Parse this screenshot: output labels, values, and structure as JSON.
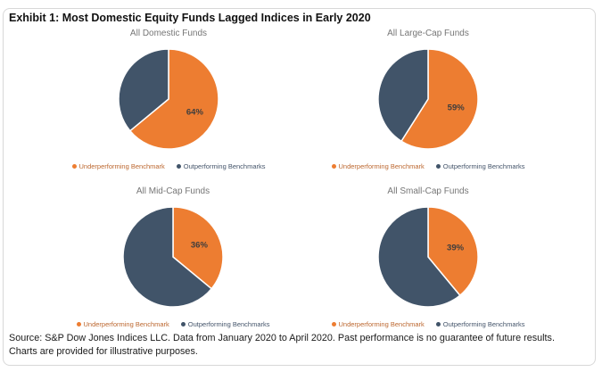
{
  "header": {
    "title": "Exhibit 1: Most Domestic Equity Funds Lagged Indices in Early 2020"
  },
  "chart_data": [
    {
      "type": "pie",
      "title": "All Domestic Funds",
      "slices": [
        {
          "label": "Underperforming Benchmark",
          "value": 64,
          "display": "64%",
          "color": "#ED7D31",
          "show_label": true
        },
        {
          "label": "Outperforming Benchmarks",
          "value": 36,
          "display": "36%",
          "color": "#415469",
          "show_label": false
        }
      ],
      "legend_position": "bottom"
    },
    {
      "type": "pie",
      "title": "All Large-Cap Funds",
      "slices": [
        {
          "label": "Underperforming Benchmark",
          "value": 59,
          "display": "59%",
          "color": "#ED7D31",
          "show_label": true
        },
        {
          "label": "Outperforming Benchmarks",
          "value": 41,
          "display": "41%",
          "color": "#415469",
          "show_label": false
        }
      ],
      "legend_position": "bottom"
    },
    {
      "type": "pie",
      "title": "All Mid-Cap Funds",
      "slices": [
        {
          "label": "Underperforming Benchmark",
          "value": 36,
          "display": "36%",
          "color": "#ED7D31",
          "show_label": true
        },
        {
          "label": "Outperforming Benchmarks",
          "value": 64,
          "display": "64%",
          "color": "#415469",
          "show_label": false
        }
      ],
      "legend_position": "bottom"
    },
    {
      "type": "pie",
      "title": "All Small-Cap Funds",
      "slices": [
        {
          "label": "Underperforming Benchmark",
          "value": 39,
          "display": "39%",
          "color": "#ED7D31",
          "show_label": true
        },
        {
          "label": "Outperforming Benchmarks",
          "value": 61,
          "display": "61%",
          "color": "#415469",
          "show_label": false
        }
      ],
      "legend_position": "bottom"
    }
  ],
  "colors": {
    "underperforming": "#ED7D31",
    "outperforming": "#415469"
  },
  "footer": {
    "lines": [
      "Source: S&P Dow Jones Indices LLC. Data from January 2020 to April 2020. Past performance is no guarantee of future results.",
      "Charts are provided for illustrative purposes."
    ]
  }
}
